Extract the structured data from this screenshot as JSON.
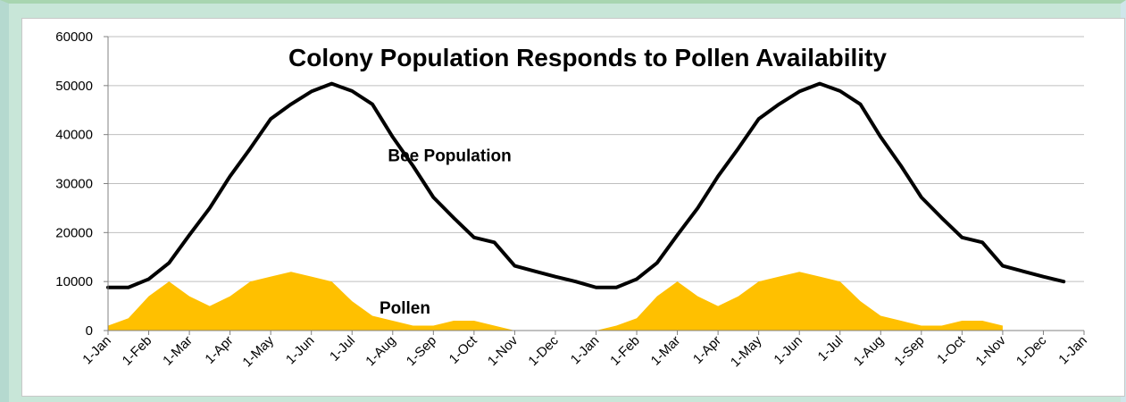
{
  "chart_data": {
    "type": "area",
    "title": "Colony Population Responds to Pollen Availability",
    "xlabel": "",
    "ylabel": "",
    "ylim": [
      0,
      60000
    ],
    "yticks": [
      "0",
      "10000",
      "20000",
      "30000",
      "40000",
      "50000",
      "60000"
    ],
    "x_tick_labels": [
      "1-Jan",
      "1-Feb",
      "1-Mar",
      "1-Apr",
      "1-May",
      "1-Jun",
      "1-Jul",
      "1-Aug",
      "1-Sep",
      "1-Oct",
      "1-Nov",
      "1-Dec",
      "1-Jan",
      "1-Feb",
      "1-Mar",
      "1-Apr",
      "1-May",
      "1-Jun",
      "1-Jul",
      "1-Aug",
      "1-Sep",
      "1-Oct",
      "1-Nov",
      "1-Dec",
      "1-Jan"
    ],
    "x_units": "months (0 = first 1-Jan, 12 = second 1-Jan, 24 = third 1-Jan)",
    "grid": "horizontal",
    "series": [
      {
        "name": "Bee Population",
        "style": "line",
        "color": "#000000",
        "x": [
          0,
          0.5,
          1,
          1.5,
          2,
          2.5,
          3,
          3.5,
          4,
          4.5,
          5,
          5.5,
          6,
          6.5,
          7,
          7.5,
          8,
          8.5,
          9,
          9.5,
          10,
          10.5,
          11,
          11.5,
          12,
          12.5,
          13,
          13.5,
          14,
          14.5,
          15,
          15.5,
          16,
          16.5,
          17,
          17.5,
          18,
          18.5,
          19,
          19.5,
          20,
          20.5,
          21,
          21.5,
          22,
          22.5,
          23,
          23.5
        ],
        "values": [
          8800,
          8800,
          10500,
          13800,
          19500,
          25000,
          31500,
          37200,
          43200,
          46200,
          48800,
          50400,
          48900,
          46200,
          39500,
          33600,
          27200,
          23000,
          19000,
          18000,
          13200,
          12100,
          11000,
          10000,
          8800,
          8800,
          10500,
          13800,
          19500,
          25000,
          31500,
          37200,
          43200,
          46200,
          48800,
          50400,
          48900,
          46200,
          39500,
          33600,
          27200,
          23000,
          19000,
          18000,
          13200,
          12100,
          11000,
          10000
        ]
      },
      {
        "name": "Pollen",
        "style": "area",
        "color": "#ffc000",
        "x": [
          0,
          0.5,
          1,
          1.5,
          2,
          2.5,
          3,
          3.5,
          4,
          4.5,
          5,
          5.5,
          6,
          6.5,
          7,
          7.5,
          8,
          8.5,
          9,
          9.5,
          10,
          10.5,
          11,
          11.5,
          12,
          12.5,
          13,
          13.5,
          14,
          14.5,
          15,
          15.5,
          16,
          16.5,
          17,
          17.5,
          18,
          18.5,
          19,
          19.5,
          20,
          20.5,
          21,
          21.5,
          22
        ],
        "values": [
          1000,
          2500,
          7000,
          10000,
          7000,
          5000,
          7000,
          10000,
          11000,
          12000,
          11000,
          10000,
          6000,
          3000,
          2000,
          1000,
          1000,
          2000,
          2000,
          1000,
          0,
          0,
          0,
          0,
          0,
          1000,
          2500,
          7000,
          10000,
          7000,
          5000,
          7000,
          10000,
          11000,
          12000,
          11000,
          10000,
          6000,
          3000,
          2000,
          1000,
          1000,
          2000,
          2000,
          1000
        ]
      }
    ],
    "annotations": [
      {
        "text": "Bee Population",
        "x": 8.4,
        "y": 34600
      },
      {
        "text": "Pollen",
        "x": 7.3,
        "y": 3500
      }
    ]
  }
}
